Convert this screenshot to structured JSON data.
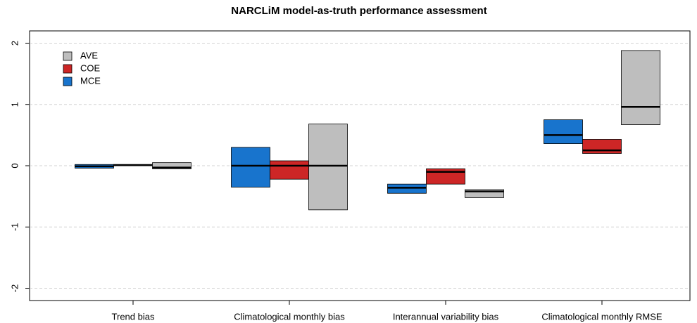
{
  "chart_data": {
    "type": "floating-box",
    "title": "NARCLiM model-as-truth performance assessment",
    "categories": [
      "Trend bias",
      "Climatological monthly bias",
      "Interannual variability bias",
      "Climatological monthly RMSE"
    ],
    "series": [
      {
        "name": "MCE",
        "color": "#1874cd",
        "low": [
          -0.04,
          -0.35,
          -0.45,
          0.36
        ],
        "high": [
          0.02,
          0.3,
          -0.3,
          0.75
        ],
        "median": [
          -0.01,
          0,
          -0.36,
          0.5
        ]
      },
      {
        "name": "COE",
        "color": "#cd2626",
        "low": [
          0,
          -0.22,
          -0.3,
          0.2
        ],
        "high": [
          0.02,
          0.08,
          -0.05,
          0.43
        ],
        "median": [
          0.01,
          0,
          -0.1,
          0.25
        ]
      },
      {
        "name": "AVE",
        "color": "#bebebe",
        "low": [
          -0.05,
          -0.72,
          -0.52,
          0.67
        ],
        "high": [
          0.05,
          0.68,
          -0.39,
          1.88
        ],
        "median": [
          -0.03,
          0,
          -0.42,
          0.96
        ]
      }
    ],
    "ylim": [
      -2.2,
      2.2
    ],
    "yticks": [
      -2,
      -1,
      0,
      1,
      2
    ],
    "grid": true,
    "legend": "top-left"
  }
}
